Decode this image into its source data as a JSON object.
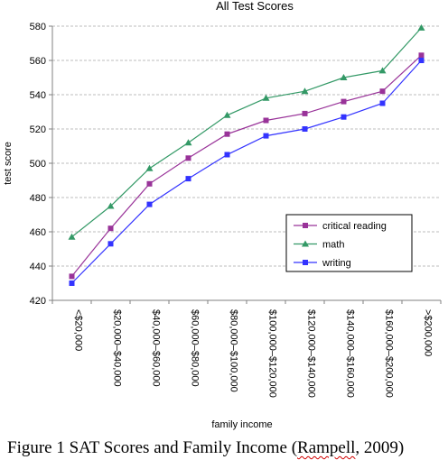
{
  "caption": {
    "prefix": "Figure 1 SAT Scores and Family Income (",
    "author": "Rampell",
    "suffix": ", 2009)"
  },
  "chart_data": {
    "type": "line",
    "title": "All Test Scores",
    "xlabel": "family income",
    "ylabel": "test score",
    "ylim": [
      420,
      580
    ],
    "yticks": [
      420,
      440,
      460,
      480,
      500,
      520,
      540,
      560,
      580
    ],
    "grid": true,
    "legend_position": "lower-right",
    "categories": [
      "<$20,000",
      "$20,000–$40,000",
      "$40,000–$60,000",
      "$60,000–$80,000",
      "$80,000–$100,000",
      "$100,000–$120,000",
      "$120,000–$140,000",
      "$140,000–$160,000",
      "$160,000–$200,000",
      ">$200,000"
    ],
    "series": [
      {
        "name": "critical reading",
        "color": "#993399",
        "marker": "square",
        "values": [
          434,
          462,
          488,
          503,
          517,
          525,
          529,
          536,
          542,
          563
        ]
      },
      {
        "name": "math",
        "color": "#339966",
        "marker": "triangle",
        "values": [
          457,
          475,
          497,
          512,
          528,
          538,
          542,
          550,
          554,
          579
        ]
      },
      {
        "name": "writing",
        "color": "#3333ff",
        "marker": "square",
        "values": [
          430,
          453,
          476,
          491,
          505,
          516,
          520,
          527,
          535,
          560
        ]
      }
    ]
  }
}
